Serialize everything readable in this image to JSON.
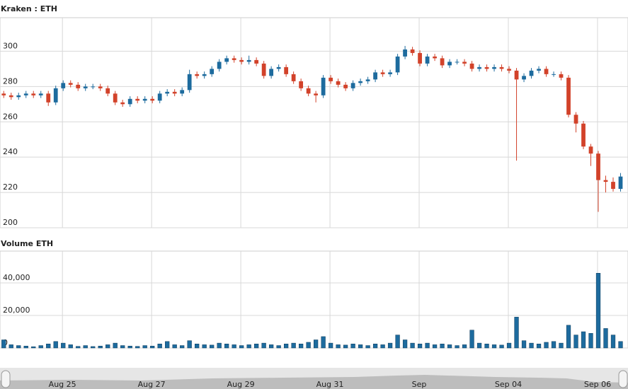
{
  "chart_data": [
    {
      "type": "candlestick",
      "title": "Kraken : ETH",
      "xlim": [
        0,
        84.5
      ],
      "xticks": [
        {
          "value": 8.4,
          "label": "Aug 25"
        },
        {
          "value": 20.4,
          "label": "Aug 27"
        },
        {
          "value": 32.4,
          "label": "Aug 29"
        },
        {
          "value": 44.4,
          "label": "Aug 31"
        },
        {
          "value": 56.4,
          "label": "Sep"
        },
        {
          "value": 68.4,
          "label": "Sep 04"
        },
        {
          "value": 80.4,
          "label": "Sep 06"
        }
      ],
      "ylim": [
        200,
        319
      ],
      "yticks": [
        200,
        220,
        240,
        260,
        280,
        300
      ],
      "grid": true,
      "up_color": "#1d6b9e",
      "down_color": "#d2422a",
      "open": [
        276,
        275,
        274,
        275,
        276,
        275,
        276,
        271,
        279,
        282,
        281,
        279,
        280,
        280,
        279,
        276,
        271,
        270,
        273,
        272,
        273,
        272,
        276,
        277,
        276,
        278,
        287,
        286,
        287,
        290,
        294,
        296,
        295,
        294,
        295,
        293,
        286,
        290,
        291,
        287,
        283,
        279,
        276,
        275,
        285,
        283,
        281,
        279,
        282,
        283,
        284,
        288,
        287,
        288,
        297,
        301,
        299,
        293,
        297,
        296,
        292,
        294,
        294,
        293,
        290,
        291,
        290,
        291,
        290,
        289,
        284,
        286,
        289,
        290,
        287,
        287,
        285,
        264,
        259,
        246,
        242,
        227,
        226,
        222
      ],
      "high": [
        277.5,
        276.5,
        276.5,
        277.5,
        277.5,
        277.5,
        277.5,
        280.5,
        283.5,
        283.5,
        282.5,
        281.5,
        281.5,
        281.5,
        280.5,
        277.5,
        272.5,
        274.5,
        274.5,
        274.5,
        274.5,
        277.5,
        278.5,
        278.5,
        279.5,
        289.5,
        288.5,
        288.5,
        291.5,
        295.5,
        297.5,
        297.5,
        296.5,
        297.5,
        296.5,
        294.5,
        291.5,
        292.5,
        292.5,
        288.5,
        284.5,
        280.5,
        277.5,
        286.5,
        286.5,
        284.5,
        282.5,
        283.5,
        284.5,
        285.5,
        289.5,
        289.5,
        289.5,
        298.5,
        303,
        302.5,
        300.5,
        298.5,
        298.5,
        297.5,
        295.5,
        295.5,
        295.5,
        294.5,
        292.5,
        292.5,
        292.5,
        292.5,
        291.5,
        290.5,
        287.5,
        290.5,
        291.5,
        291.5,
        288.5,
        288.5,
        286.5,
        265.5,
        260.5,
        247.5,
        243.5,
        229.5,
        228.5,
        231
      ],
      "low": [
        273.5,
        272.5,
        272.5,
        273.5,
        273.5,
        273.5,
        269,
        269.5,
        277.5,
        279.5,
        277.5,
        277.5,
        278.5,
        277.5,
        274.5,
        269.5,
        268.5,
        268.5,
        270.5,
        270.5,
        270.5,
        270.5,
        274.5,
        274.5,
        274.5,
        276.5,
        284.5,
        284.5,
        285.5,
        288.5,
        292.5,
        293.5,
        292.5,
        292.5,
        291.5,
        284.5,
        284.5,
        288.5,
        285.5,
        281.5,
        277.5,
        274.5,
        271,
        273.5,
        281.5,
        279.5,
        277.5,
        277.5,
        280.5,
        281.5,
        282.5,
        285.5,
        285.5,
        286.5,
        295.5,
        297.5,
        291.5,
        291.5,
        294.5,
        290.5,
        290.5,
        292.5,
        291.5,
        288.5,
        288.5,
        288.5,
        288.5,
        288.5,
        287.5,
        238,
        282.5,
        284.5,
        287.5,
        285.5,
        285.5,
        283.5,
        262.5,
        254,
        244.5,
        235,
        209,
        220,
        220.5,
        220.5
      ],
      "close": [
        275,
        274,
        275,
        276,
        275,
        276,
        271,
        279,
        282,
        281,
        279,
        280,
        280,
        279,
        276,
        271,
        270,
        273,
        272,
        273,
        272,
        276,
        277,
        276,
        278,
        287,
        286,
        287,
        290,
        294,
        296,
        295,
        294,
        295,
        293,
        286,
        290,
        291,
        287,
        283,
        279,
        276,
        275,
        285,
        283,
        281,
        279,
        282,
        283,
        284,
        288,
        287,
        288,
        297,
        301,
        299,
        293,
        297,
        296,
        292,
        294,
        294,
        293,
        290,
        291,
        290,
        291,
        290,
        289,
        284,
        286,
        289,
        290,
        287,
        287,
        285,
        264,
        259,
        246,
        242,
        227,
        226,
        222,
        229
      ]
    },
    {
      "type": "bar",
      "title": "Volume ETH",
      "color": "#1d6b9e",
      "ylim": [
        0,
        59600
      ],
      "yticks": [
        0,
        {
          "value": 20000,
          "label": "20,000"
        },
        {
          "value": 40000,
          "label": "40,000"
        }
      ],
      "grid": true,
      "values": [
        5000,
        2000,
        1500,
        1200,
        800,
        1500,
        2500,
        4000,
        3000,
        2000,
        1000,
        1500,
        900,
        1200,
        2000,
        3000,
        1500,
        1200,
        1000,
        1500,
        1200,
        2500,
        4000,
        2000,
        1500,
        4500,
        2500,
        2000,
        1800,
        3000,
        2500,
        2000,
        1500,
        2000,
        2500,
        3000,
        2000,
        1500,
        2500,
        3000,
        2500,
        3500,
        5000,
        7000,
        3000,
        2000,
        1800,
        2500,
        2000,
        1500,
        2500,
        2000,
        3000,
        8000,
        5000,
        3000,
        2500,
        3000,
        2000,
        2500,
        2000,
        1500,
        2000,
        11000,
        3000,
        2500,
        2000,
        1800,
        3000,
        19000,
        4500,
        3000,
        2500,
        3500,
        4000,
        3000,
        14000,
        8000,
        10000,
        9000,
        46000,
        12000,
        8000,
        4000
      ]
    }
  ]
}
